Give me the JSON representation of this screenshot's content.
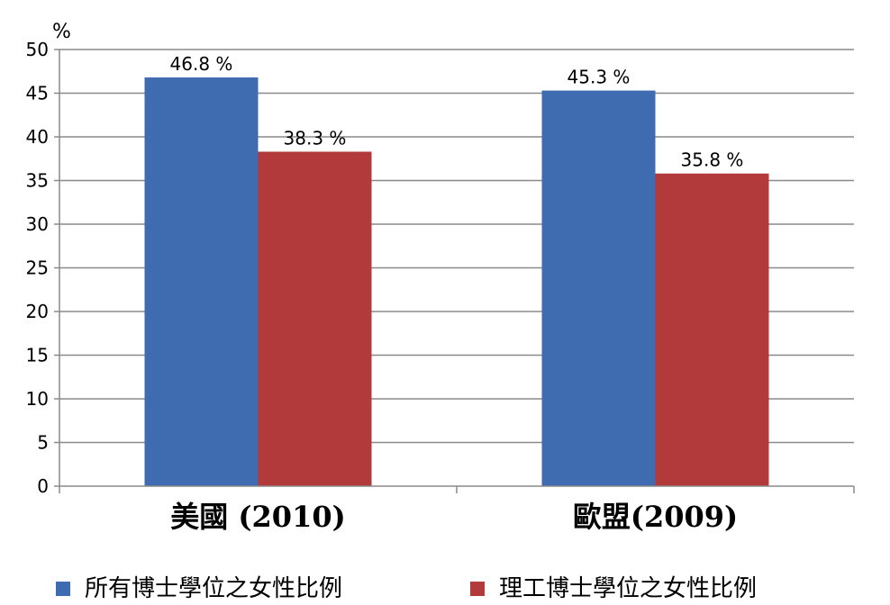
{
  "chart_data": {
    "type": "bar",
    "unit": "%",
    "categories": [
      "美國 (2010)",
      "歐盟(2009)"
    ],
    "series": [
      {
        "name": "所有博士學位之女性比例",
        "values": [
          46.8,
          45.3
        ],
        "labels": [
          "46.8 %",
          "45.3 %"
        ],
        "color": "#3F6BB0"
      },
      {
        "name": "理工博士學位之女性比例",
        "values": [
          38.3,
          35.8
        ],
        "labels": [
          "38.3 %",
          "35.8 %"
        ],
        "color": "#B33A3B"
      }
    ],
    "ylim": [
      0,
      50
    ],
    "yticks": [
      0,
      5,
      10,
      15,
      20,
      25,
      30,
      35,
      40,
      45,
      50
    ],
    "grid": true,
    "legend_position": "bottom"
  }
}
